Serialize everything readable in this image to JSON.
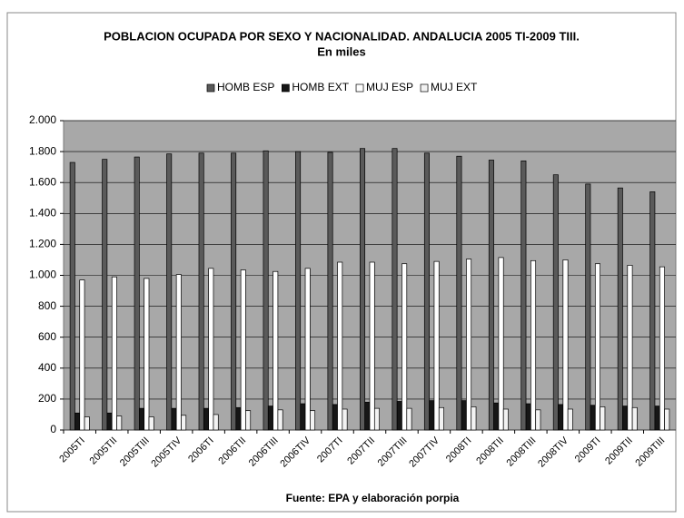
{
  "chart_data": {
    "type": "bar",
    "title": "POBLACION OCUPADA POR SEXO Y NACIONALIDAD. ANDALUCIA 2005 TI-2009 TIII.",
    "subtitle": "En miles",
    "source": "Fuente: EPA y elaboración porpia",
    "categories": [
      "2005TI",
      "2005TII",
      "2005TIII",
      "2005TIV",
      "2006TI",
      "2006TII",
      "2006TIII",
      "2006TIV",
      "2007TI",
      "2007TII",
      "2007TIII",
      "2007TIV",
      "2008TI",
      "2008TII",
      "2008TIII",
      "2008TIV",
      "2009TI",
      "2009TII",
      "2009TIII"
    ],
    "series": [
      {
        "name": "HOMB ESP",
        "color": "#5a5a5a",
        "values": [
          1730,
          1750,
          1765,
          1785,
          1790,
          1790,
          1805,
          1800,
          1795,
          1820,
          1820,
          1790,
          1770,
          1745,
          1740,
          1650,
          1590,
          1565,
          1540
        ]
      },
      {
        "name": "HOMB EXT",
        "color": "#161616",
        "values": [
          110,
          110,
          140,
          140,
          140,
          145,
          155,
          170,
          165,
          180,
          185,
          190,
          190,
          175,
          170,
          165,
          160,
          155,
          155
        ]
      },
      {
        "name": "MUJ ESP",
        "color": "#ffffff",
        "values": [
          970,
          990,
          980,
          1005,
          1045,
          1035,
          1025,
          1045,
          1085,
          1085,
          1075,
          1090,
          1105,
          1115,
          1095,
          1100,
          1075,
          1065,
          1055
        ]
      },
      {
        "name": "MUJ EXT",
        "color": "#f2f2f2",
        "values": [
          85,
          90,
          85,
          95,
          100,
          125,
          130,
          125,
          135,
          140,
          140,
          145,
          150,
          135,
          130,
          135,
          150,
          145,
          135
        ]
      }
    ],
    "ylim": [
      0,
      2000
    ],
    "yticks": [
      0,
      {
        "value": 200,
        "label": "200"
      },
      {
        "value": 400,
        "label": "400"
      },
      {
        "value": 600,
        "label": "600"
      },
      {
        "value": 800,
        "label": "800"
      },
      {
        "value": 1000,
        "label": "1.000"
      },
      {
        "value": 1200,
        "label": "1.200"
      },
      {
        "value": 1400,
        "label": "1.400"
      },
      {
        "value": 1600,
        "label": "1.600"
      },
      {
        "value": 1800,
        "label": "1.800"
      },
      {
        "value": 2000,
        "label": "2.000"
      }
    ],
    "plot_background": "#a8a8a8",
    "grid": true,
    "legend": "top"
  }
}
